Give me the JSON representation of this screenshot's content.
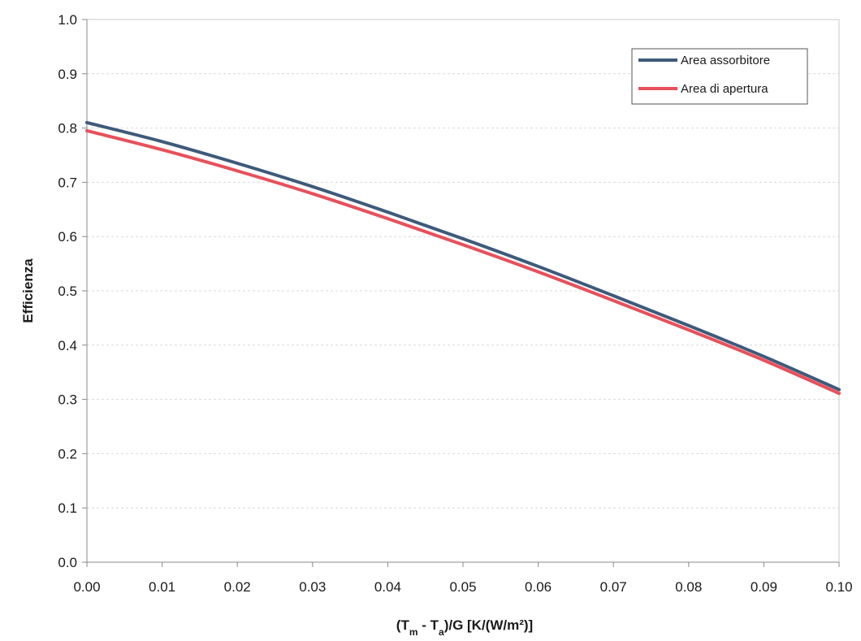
{
  "chart_data": {
    "type": "line",
    "title": "",
    "xlabel_parts": {
      "open": "(T",
      "sub1": "m",
      "mid": " - T",
      "sub2": "a",
      "close": ")/G   [K/(W/m²)]"
    },
    "ylabel": "Efficienza",
    "xlim": [
      0.0,
      0.1
    ],
    "ylim": [
      0.0,
      1.0
    ],
    "x_ticks": [
      "0.00",
      "0.01",
      "0.02",
      "0.03",
      "0.04",
      "0.05",
      "0.06",
      "0.07",
      "0.08",
      "0.09",
      "0.10"
    ],
    "y_ticks": [
      "0.0",
      "0.1",
      "0.2",
      "0.3",
      "0.4",
      "0.5",
      "0.6",
      "0.7",
      "0.8",
      "0.9",
      "1.0"
    ],
    "grid": true,
    "legend_position": "top-right",
    "x": [
      0.0,
      0.01,
      0.02,
      0.03,
      0.04,
      0.05,
      0.06,
      0.07,
      0.08,
      0.09,
      0.1
    ],
    "series": [
      {
        "name": "Area assorbitore",
        "color": "#3e5a7a",
        "values": [
          0.81,
          0.775,
          0.735,
          0.692,
          0.645,
          0.596,
          0.545,
          0.491,
          0.436,
          0.379,
          0.318
        ]
      },
      {
        "name": "Area di apertura",
        "color": "#e8505b",
        "values": [
          0.795,
          0.76,
          0.721,
          0.679,
          0.633,
          0.585,
          0.535,
          0.482,
          0.428,
          0.372,
          0.311
        ]
      }
    ]
  }
}
